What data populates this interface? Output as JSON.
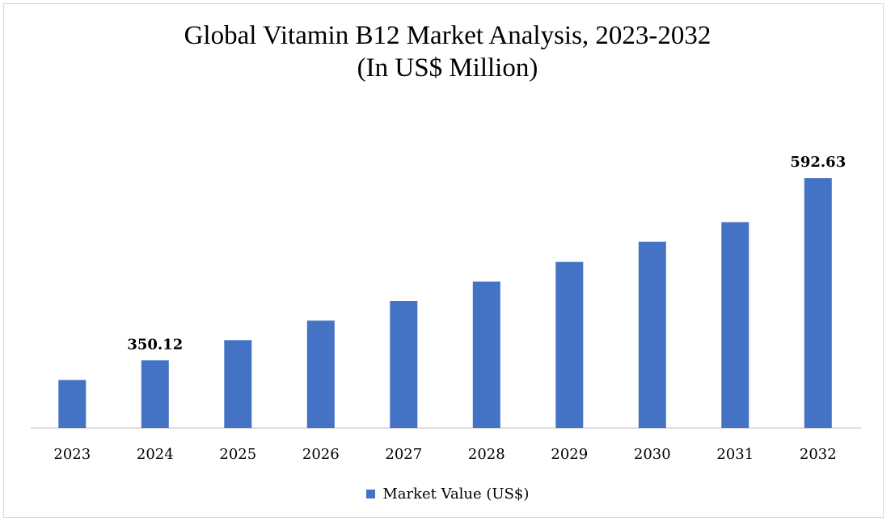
{
  "chart_data": {
    "type": "bar",
    "title": "Global Vitamin B12 Market Analysis, 2023-2032",
    "subtitle": "(In US$ Million)",
    "categories": [
      "2023",
      "2024",
      "2025",
      "2026",
      "2027",
      "2028",
      "2029",
      "2030",
      "2031",
      "2032"
    ],
    "series": [
      {
        "name": "Market Value (US$)",
        "color": "#4472C4",
        "values": [
          324.0,
          350.12,
          377.0,
          403.0,
          429.0,
          455.0,
          481.0,
          508.0,
          534.0,
          592.63
        ]
      }
    ],
    "data_labels": [
      {
        "category": "2024",
        "text": "350.12"
      },
      {
        "category": "2032",
        "text": "592.63"
      }
    ],
    "ylim": [
      260,
      625
    ],
    "grid": false,
    "legend_position": "bottom",
    "xlabel": "",
    "ylabel": ""
  }
}
